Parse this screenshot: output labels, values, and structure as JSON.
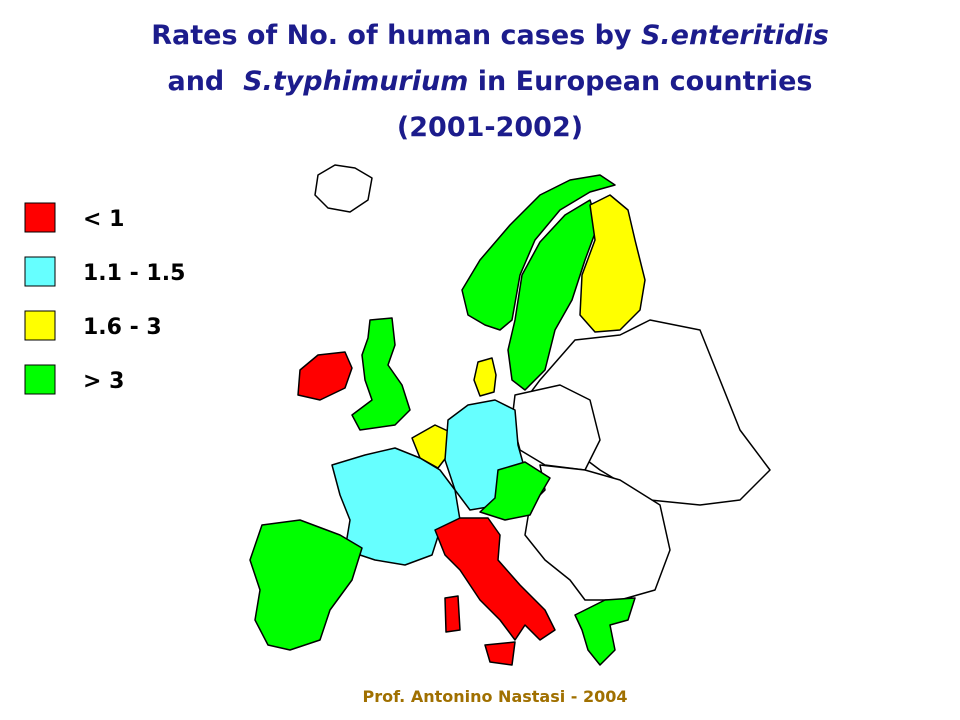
{
  "title": {
    "lines": [
      [
        {
          "text": "Rates of No. of human cases by ",
          "italic": false
        },
        {
          "text": "S.enteritidis",
          "italic": true
        }
      ],
      [
        {
          "text": "and  ",
          "italic": false
        },
        {
          "text": "S.typhimurium",
          "italic": true
        },
        {
          "text": " in European countries",
          "italic": false
        }
      ],
      [
        {
          "text": "(2001-2002)",
          "italic": false
        }
      ]
    ]
  },
  "legend": {
    "items": [
      {
        "label": "< 1",
        "color": "#ff0000"
      },
      {
        "label": "1.1 - 1.5",
        "color": "#66ffff"
      },
      {
        "label": "1.6 - 3",
        "color": "#ffff00"
      },
      {
        "label": "> 3",
        "color": "#00ff00"
      }
    ]
  },
  "footer": "Prof. Antonino Nastasi - 2004"
}
